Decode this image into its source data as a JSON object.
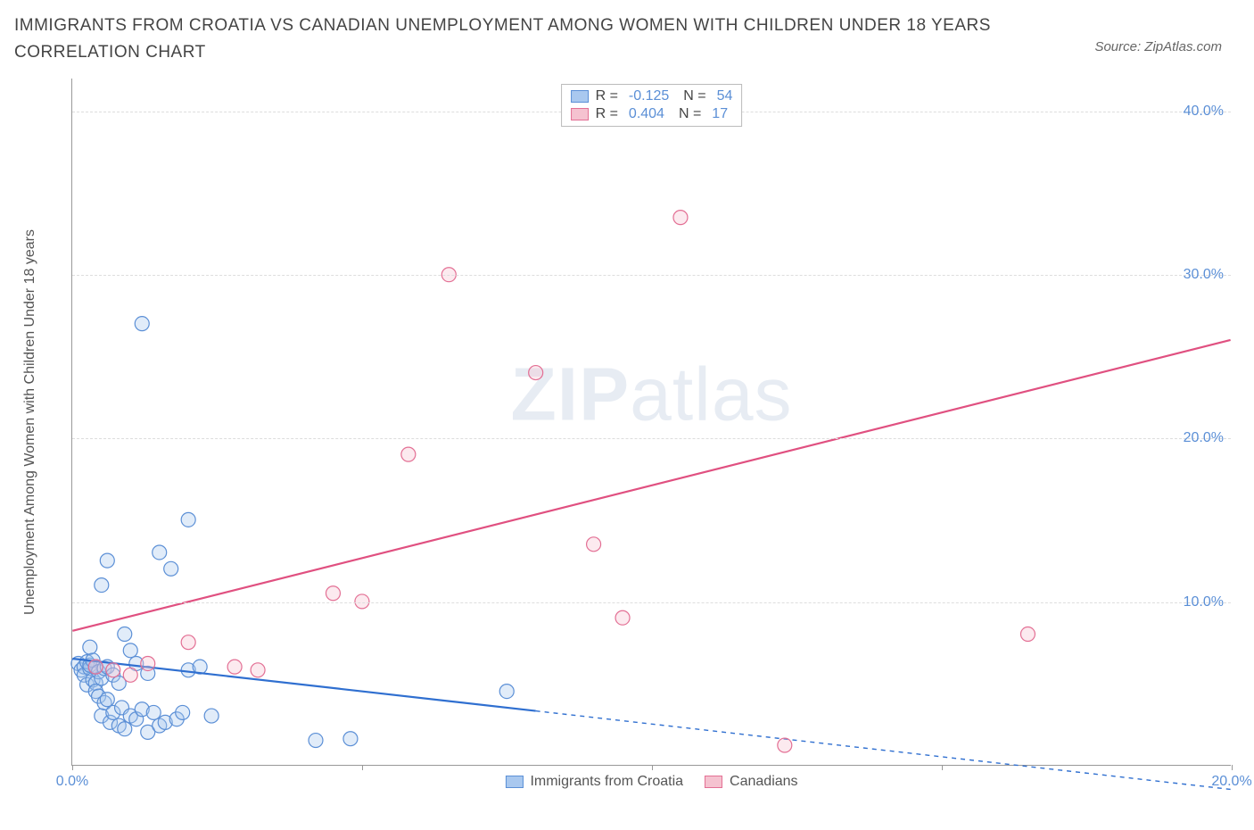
{
  "title": "IMMIGRANTS FROM CROATIA VS CANADIAN UNEMPLOYMENT AMONG WOMEN WITH CHILDREN UNDER 18 YEARS CORRELATION CHART",
  "source": "Source: ZipAtlas.com",
  "watermark_a": "ZIP",
  "watermark_b": "atlas",
  "chart": {
    "type": "scatter",
    "y_axis_label": "Unemployment Among Women with Children Under 18 years",
    "xlim": [
      0,
      20
    ],
    "ylim": [
      0,
      42
    ],
    "x_ticks": [
      0,
      5,
      10,
      15,
      20
    ],
    "x_tick_labels": [
      "0.0%",
      "",
      "",
      "",
      "20.0%"
    ],
    "y_ticks": [
      10,
      20,
      30,
      40
    ],
    "y_tick_labels": [
      "10.0%",
      "20.0%",
      "30.0%",
      "40.0%"
    ],
    "grid_color": "#dddddd",
    "axis_color": "#999999",
    "background_color": "#ffffff",
    "tick_label_color": "#5b8fd6",
    "tick_label_fontsize": 16,
    "axis_label_fontsize": 16,
    "axis_label_color": "#555555",
    "marker_radius": 8,
    "marker_stroke_width": 1.2,
    "marker_fill_opacity": 0.35,
    "line_width": 2.2,
    "series": [
      {
        "name": "Immigrants from Croatia",
        "color_fill": "#a9c8ef",
        "color_stroke": "#5b8fd6",
        "line_color": "#2f6fd0",
        "R": "-0.125",
        "N": "54",
        "regression": {
          "x1": 0,
          "y1": 6.5,
          "x2": 8,
          "y2": 3.3,
          "extend_to_x": 20,
          "extend_to_y": -1.5
        },
        "points": [
          [
            0.1,
            6.2
          ],
          [
            0.15,
            5.8
          ],
          [
            0.2,
            6.0
          ],
          [
            0.2,
            5.5
          ],
          [
            0.25,
            6.3
          ],
          [
            0.25,
            4.9
          ],
          [
            0.3,
            5.9
          ],
          [
            0.3,
            6.1
          ],
          [
            0.35,
            5.2
          ],
          [
            0.35,
            6.4
          ],
          [
            0.4,
            5.0
          ],
          [
            0.4,
            6.0
          ],
          [
            0.4,
            4.5
          ],
          [
            0.45,
            5.7
          ],
          [
            0.45,
            4.2
          ],
          [
            0.5,
            5.3
          ],
          [
            0.5,
            3.0
          ],
          [
            0.55,
            5.9
          ],
          [
            0.55,
            3.8
          ],
          [
            0.6,
            4.0
          ],
          [
            0.6,
            6.0
          ],
          [
            0.65,
            2.6
          ],
          [
            0.7,
            3.2
          ],
          [
            0.7,
            5.5
          ],
          [
            0.8,
            2.4
          ],
          [
            0.8,
            5.0
          ],
          [
            0.85,
            3.5
          ],
          [
            0.9,
            2.2
          ],
          [
            0.9,
            8.0
          ],
          [
            1.0,
            7.0
          ],
          [
            1.0,
            3.0
          ],
          [
            1.1,
            2.8
          ],
          [
            1.1,
            6.2
          ],
          [
            1.2,
            3.4
          ],
          [
            1.3,
            2.0
          ],
          [
            1.3,
            5.6
          ],
          [
            1.4,
            3.2
          ],
          [
            1.5,
            2.4
          ],
          [
            1.5,
            13.0
          ],
          [
            1.6,
            2.6
          ],
          [
            1.7,
            12.0
          ],
          [
            1.8,
            2.8
          ],
          [
            1.9,
            3.2
          ],
          [
            2.0,
            5.8
          ],
          [
            2.0,
            15.0
          ],
          [
            2.2,
            6.0
          ],
          [
            2.4,
            3.0
          ],
          [
            0.5,
            11.0
          ],
          [
            0.6,
            12.5
          ],
          [
            1.2,
            27.0
          ],
          [
            4.2,
            1.5
          ],
          [
            4.8,
            1.6
          ],
          [
            7.5,
            4.5
          ],
          [
            0.3,
            7.2
          ]
        ]
      },
      {
        "name": "Canadians",
        "color_fill": "#f5c2d0",
        "color_stroke": "#e36f94",
        "line_color": "#e05080",
        "R": "0.404",
        "N": "17",
        "regression": {
          "x1": 0,
          "y1": 8.2,
          "x2": 20,
          "y2": 26.0
        },
        "points": [
          [
            0.4,
            6.0
          ],
          [
            0.7,
            5.8
          ],
          [
            1.0,
            5.5
          ],
          [
            1.3,
            6.2
          ],
          [
            2.0,
            7.5
          ],
          [
            2.8,
            6.0
          ],
          [
            3.2,
            5.8
          ],
          [
            4.5,
            10.5
          ],
          [
            5.0,
            10.0
          ],
          [
            5.8,
            19.0
          ],
          [
            6.5,
            30.0
          ],
          [
            8.0,
            24.0
          ],
          [
            9.0,
            13.5
          ],
          [
            9.5,
            9.0
          ],
          [
            10.5,
            33.5
          ],
          [
            16.5,
            8.0
          ],
          [
            12.3,
            1.2
          ]
        ]
      }
    ],
    "legend_bottom": [
      {
        "label": "Immigrants from Croatia",
        "fill": "#a9c8ef",
        "stroke": "#5b8fd6"
      },
      {
        "label": "Canadians",
        "fill": "#f5c2d0",
        "stroke": "#e36f94"
      }
    ]
  }
}
